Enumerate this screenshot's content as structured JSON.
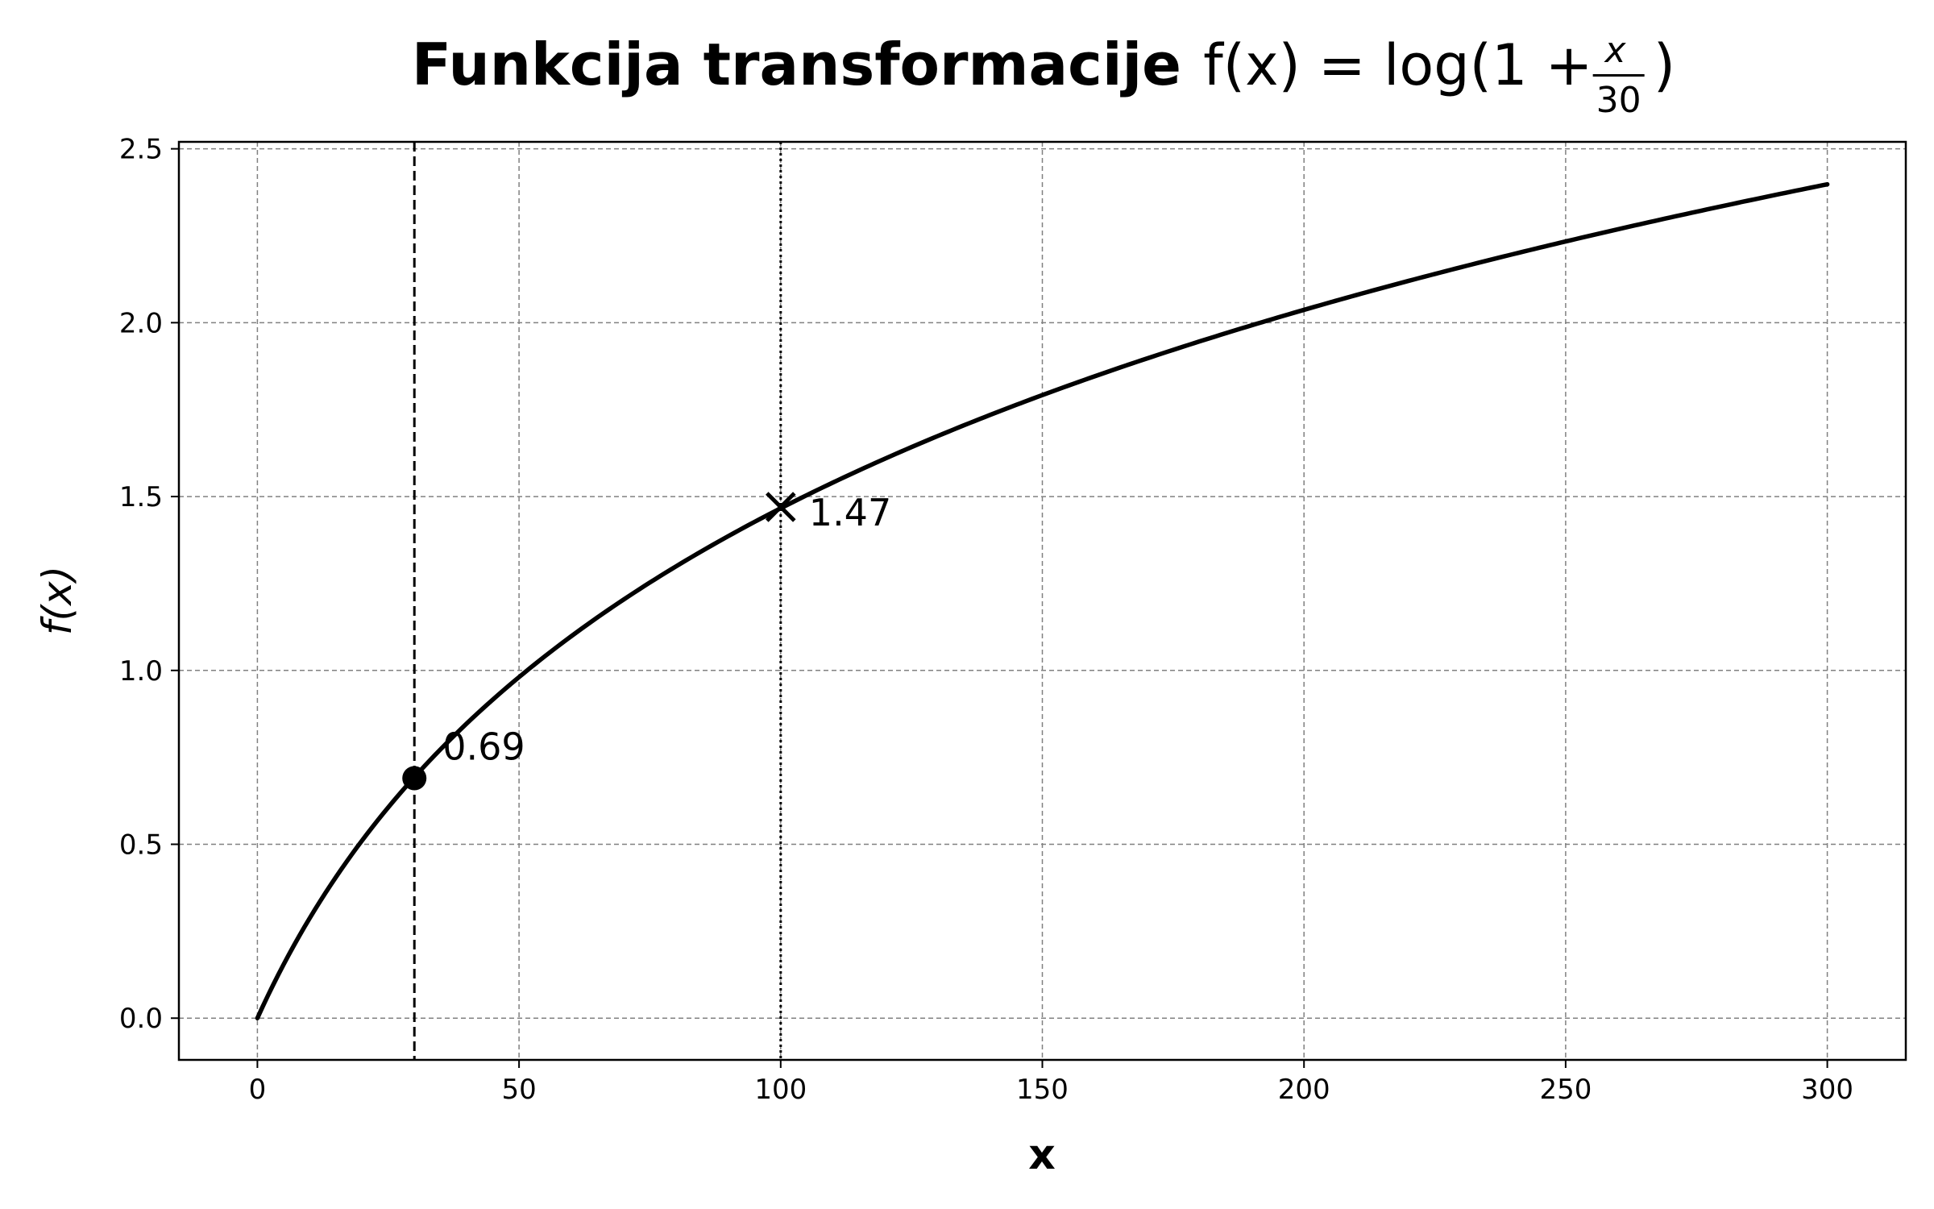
{
  "chart_data": {
    "type": "line",
    "title": {
      "bold": "Funkcija transformacije",
      "formula_lhs": "f(x) = log(1 +",
      "frac_num": "x",
      "frac_den": "30",
      "formula_close": ")"
    },
    "xlabel": "x",
    "ylabel": "f(x)",
    "xlim": [
      -15,
      315
    ],
    "ylim": [
      -0.12,
      2.52
    ],
    "xticks": [
      0,
      50,
      100,
      150,
      200,
      250,
      300
    ],
    "yticks": [
      0.0,
      0.5,
      1.0,
      1.5,
      2.0,
      2.5
    ],
    "xtick_labels": [
      "0",
      "50",
      "100",
      "150",
      "200",
      "250",
      "300"
    ],
    "ytick_labels": [
      "0.0",
      "0.5",
      "1.0",
      "1.5",
      "2.0",
      "2.5"
    ],
    "grid": true,
    "series": [
      {
        "function": "log(1 + x/30)",
        "x_range": [
          0,
          300
        ],
        "color": "#000000",
        "style": "solid"
      }
    ],
    "vlines": [
      {
        "x": 30,
        "style": "dashed",
        "color": "#000000"
      },
      {
        "x": 100,
        "style": "dotted",
        "color": "#000000"
      }
    ],
    "markers": [
      {
        "x": 30,
        "y": 0.69,
        "shape": "circle",
        "label": "0.69"
      },
      {
        "x": 100,
        "y": 1.47,
        "shape": "x",
        "label": "1.47"
      }
    ]
  }
}
